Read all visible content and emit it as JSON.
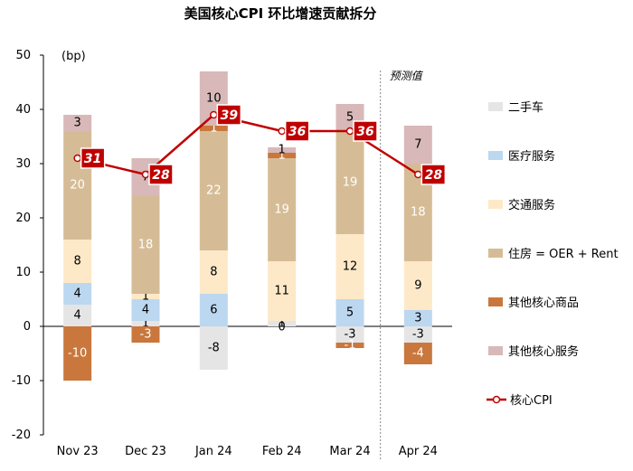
{
  "chart_data": {
    "type": "bar",
    "stacked": true,
    "title": "美国核心CPI 环比增速贡献拆分",
    "unit_label": "(bp)",
    "annotation": "预测值",
    "categories": [
      "Nov 23",
      "Dec 23",
      "Jan 24",
      "Feb 24",
      "Mar 24",
      "Apr 24"
    ],
    "ylim": [
      -20,
      50
    ],
    "yticks": [
      -20,
      -10,
      0,
      10,
      20,
      30,
      40,
      50
    ],
    "grid": false,
    "legend_position": "right",
    "series": [
      {
        "name": "二手车",
        "color": "#e5e5e5",
        "label_color": "#000000",
        "values": [
          4,
          1,
          -8,
          1,
          -3,
          -3
        ],
        "labels": [
          "4",
          "1",
          "-8",
          "1",
          "-3",
          "-3"
        ]
      },
      {
        "name": "医疗服务",
        "color": "#bcd7f0",
        "label_color": "#000000",
        "values": [
          4,
          4,
          6,
          0,
          5,
          3
        ],
        "labels": [
          "4",
          "4",
          "6",
          "0",
          "5",
          "3"
        ]
      },
      {
        "name": "交通服务",
        "color": "#fde9c8",
        "label_color": "#000000",
        "values": [
          8,
          1,
          8,
          11,
          12,
          9
        ],
        "labels": [
          "8",
          "1",
          "8",
          "11",
          "12",
          "9"
        ]
      },
      {
        "name": "住房 = OER + Rent",
        "color": "#d6bc96",
        "label_color": "#ffffff",
        "values": [
          20,
          18,
          22,
          19,
          19,
          18
        ],
        "labels": [
          "20",
          "18",
          "22",
          "19",
          "19",
          "18"
        ]
      },
      {
        "name": "其他核心商品",
        "color": "#c9773c",
        "label_color": "#ffffff",
        "values": [
          -10,
          -3,
          1,
          1,
          -1,
          -4
        ],
        "labels": [
          "-10",
          "-3",
          "1",
          "1",
          "-1",
          "-4"
        ]
      },
      {
        "name": "其他核心服务",
        "color": "#d8b8b8",
        "label_color": "#000000",
        "values": [
          3,
          7,
          10,
          1,
          5,
          7
        ],
        "labels": [
          "3",
          "7",
          "10",
          "1",
          "5",
          "7"
        ]
      }
    ],
    "line": {
      "name": "核心CPI",
      "color": "#c00000",
      "values": [
        31,
        28,
        39,
        36,
        36,
        28
      ],
      "labels": [
        "31",
        "28",
        "39",
        "36",
        "36",
        "28"
      ]
    }
  }
}
